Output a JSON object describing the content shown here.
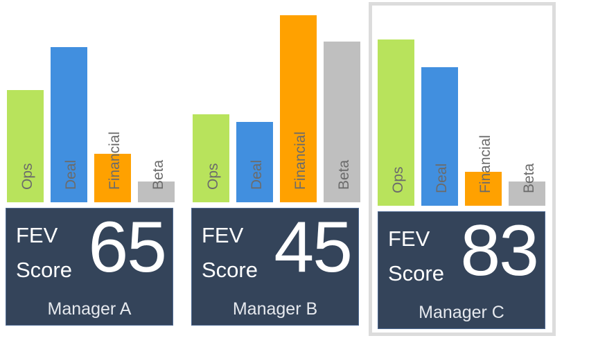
{
  "chart_data": [
    {
      "type": "bar",
      "categories": [
        "Ops",
        "Deal",
        "Financial",
        "Beta"
      ],
      "values": [
        60,
        83,
        26,
        11
      ],
      "colors": [
        "#b8e35c",
        "#418fdf",
        "#ffa100",
        "#bfbfbf"
      ],
      "card": {
        "line1": "FEV",
        "line2": "Score",
        "score": "65",
        "manager": "Manager A"
      },
      "highlighted": false
    },
    {
      "type": "bar",
      "categories": [
        "Ops",
        "Deal",
        "Financial",
        "Beta"
      ],
      "values": [
        47,
        43,
        100,
        86
      ],
      "colors": [
        "#b8e35c",
        "#418fdf",
        "#ffa100",
        "#bfbfbf"
      ],
      "card": {
        "line1": "FEV",
        "line2": "Score",
        "score": "45",
        "manager": "Manager B"
      },
      "highlighted": false
    },
    {
      "type": "bar",
      "categories": [
        "Ops",
        "Deal",
        "Financial",
        "Beta"
      ],
      "values": [
        89,
        74,
        18,
        13
      ],
      "colors": [
        "#b8e35c",
        "#418fdf",
        "#ffa100",
        "#bfbfbf"
      ],
      "card": {
        "line1": "FEV",
        "line2": "Score",
        "score": "83",
        "manager": "Manager C"
      },
      "highlighted": true
    }
  ]
}
